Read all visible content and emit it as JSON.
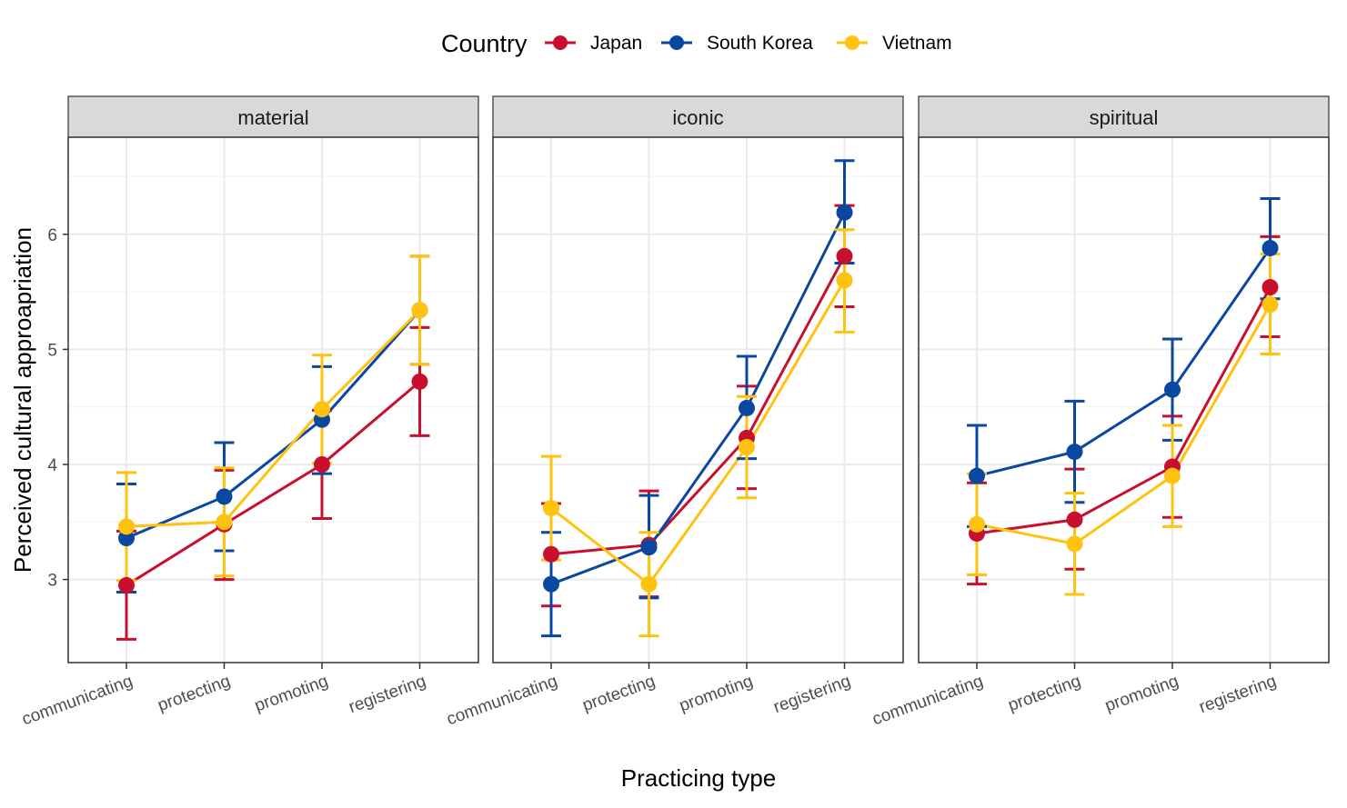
{
  "chart_data": {
    "type": "line",
    "xlabel": "Practicing type",
    "ylabel": "Perceived cultural approapriation",
    "categories": [
      "communicating",
      "protecting",
      "promoting",
      "registering"
    ],
    "ylim": [
      2.3,
      6.85
    ],
    "yticks": [
      3,
      4,
      5,
      6
    ],
    "grid": true,
    "legend": {
      "title": "Country",
      "position": "top",
      "items": [
        {
          "name": "Japan",
          "color": "#c8102e"
        },
        {
          "name": "South Korea",
          "color": "#0a47a1"
        },
        {
          "name": "Vietnam",
          "color": "#ffc20e"
        }
      ]
    },
    "panels": [
      {
        "label": "material",
        "series": [
          {
            "name": "Japan",
            "color": "#c8102e",
            "values": [
              2.95,
              3.48,
              4.0,
              4.72
            ],
            "lower": [
              2.48,
              3.0,
              3.53,
              4.25
            ],
            "upper": [
              3.42,
              3.95,
              4.47,
              5.19
            ]
          },
          {
            "name": "South Korea",
            "color": "#0a47a1",
            "values": [
              3.36,
              3.72,
              4.39,
              5.34
            ],
            "lower": [
              2.89,
              3.25,
              3.92,
              4.87
            ],
            "upper": [
              3.83,
              4.19,
              4.85,
              5.81
            ]
          },
          {
            "name": "Vietnam",
            "color": "#ffc20e",
            "values": [
              3.46,
              3.5,
              4.48,
              5.34
            ],
            "lower": [
              2.99,
              3.03,
              4.01,
              4.87
            ],
            "upper": [
              3.93,
              3.97,
              4.95,
              5.81
            ]
          }
        ]
      },
      {
        "label": "iconic",
        "series": [
          {
            "name": "Japan",
            "color": "#c8102e",
            "values": [
              3.22,
              3.3,
              4.23,
              5.81
            ],
            "lower": [
              2.77,
              2.85,
              3.79,
              5.37
            ],
            "upper": [
              3.66,
              3.77,
              4.68,
              6.25
            ]
          },
          {
            "name": "South Korea",
            "color": "#0a47a1",
            "values": [
              2.96,
              3.28,
              4.49,
              6.19
            ],
            "lower": [
              2.51,
              2.84,
              4.05,
              5.75
            ],
            "upper": [
              3.41,
              3.73,
              4.94,
              6.64
            ]
          },
          {
            "name": "Vietnam",
            "color": "#ffc20e",
            "values": [
              3.62,
              2.96,
              4.15,
              5.6
            ],
            "lower": [
              3.17,
              2.51,
              3.71,
              5.15
            ],
            "upper": [
              4.07,
              3.41,
              4.59,
              6.04
            ]
          }
        ]
      },
      {
        "label": "spiritual",
        "series": [
          {
            "name": "Japan",
            "color": "#c8102e",
            "values": [
              3.4,
              3.52,
              3.98,
              5.54
            ],
            "lower": [
              2.96,
              3.09,
              3.54,
              5.11
            ],
            "upper": [
              3.84,
              3.96,
              4.42,
              5.98
            ]
          },
          {
            "name": "South Korea",
            "color": "#0a47a1",
            "values": [
              3.9,
              4.11,
              4.65,
              5.88
            ],
            "lower": [
              3.46,
              3.67,
              4.21,
              5.44
            ],
            "upper": [
              4.34,
              4.55,
              5.09,
              6.31
            ]
          },
          {
            "name": "Vietnam",
            "color": "#ffc20e",
            "values": [
              3.48,
              3.31,
              3.9,
              5.39
            ],
            "lower": [
              3.04,
              2.87,
              3.46,
              4.96
            ],
            "upper": [
              3.92,
              3.75,
              4.34,
              5.83
            ]
          }
        ]
      }
    ]
  }
}
